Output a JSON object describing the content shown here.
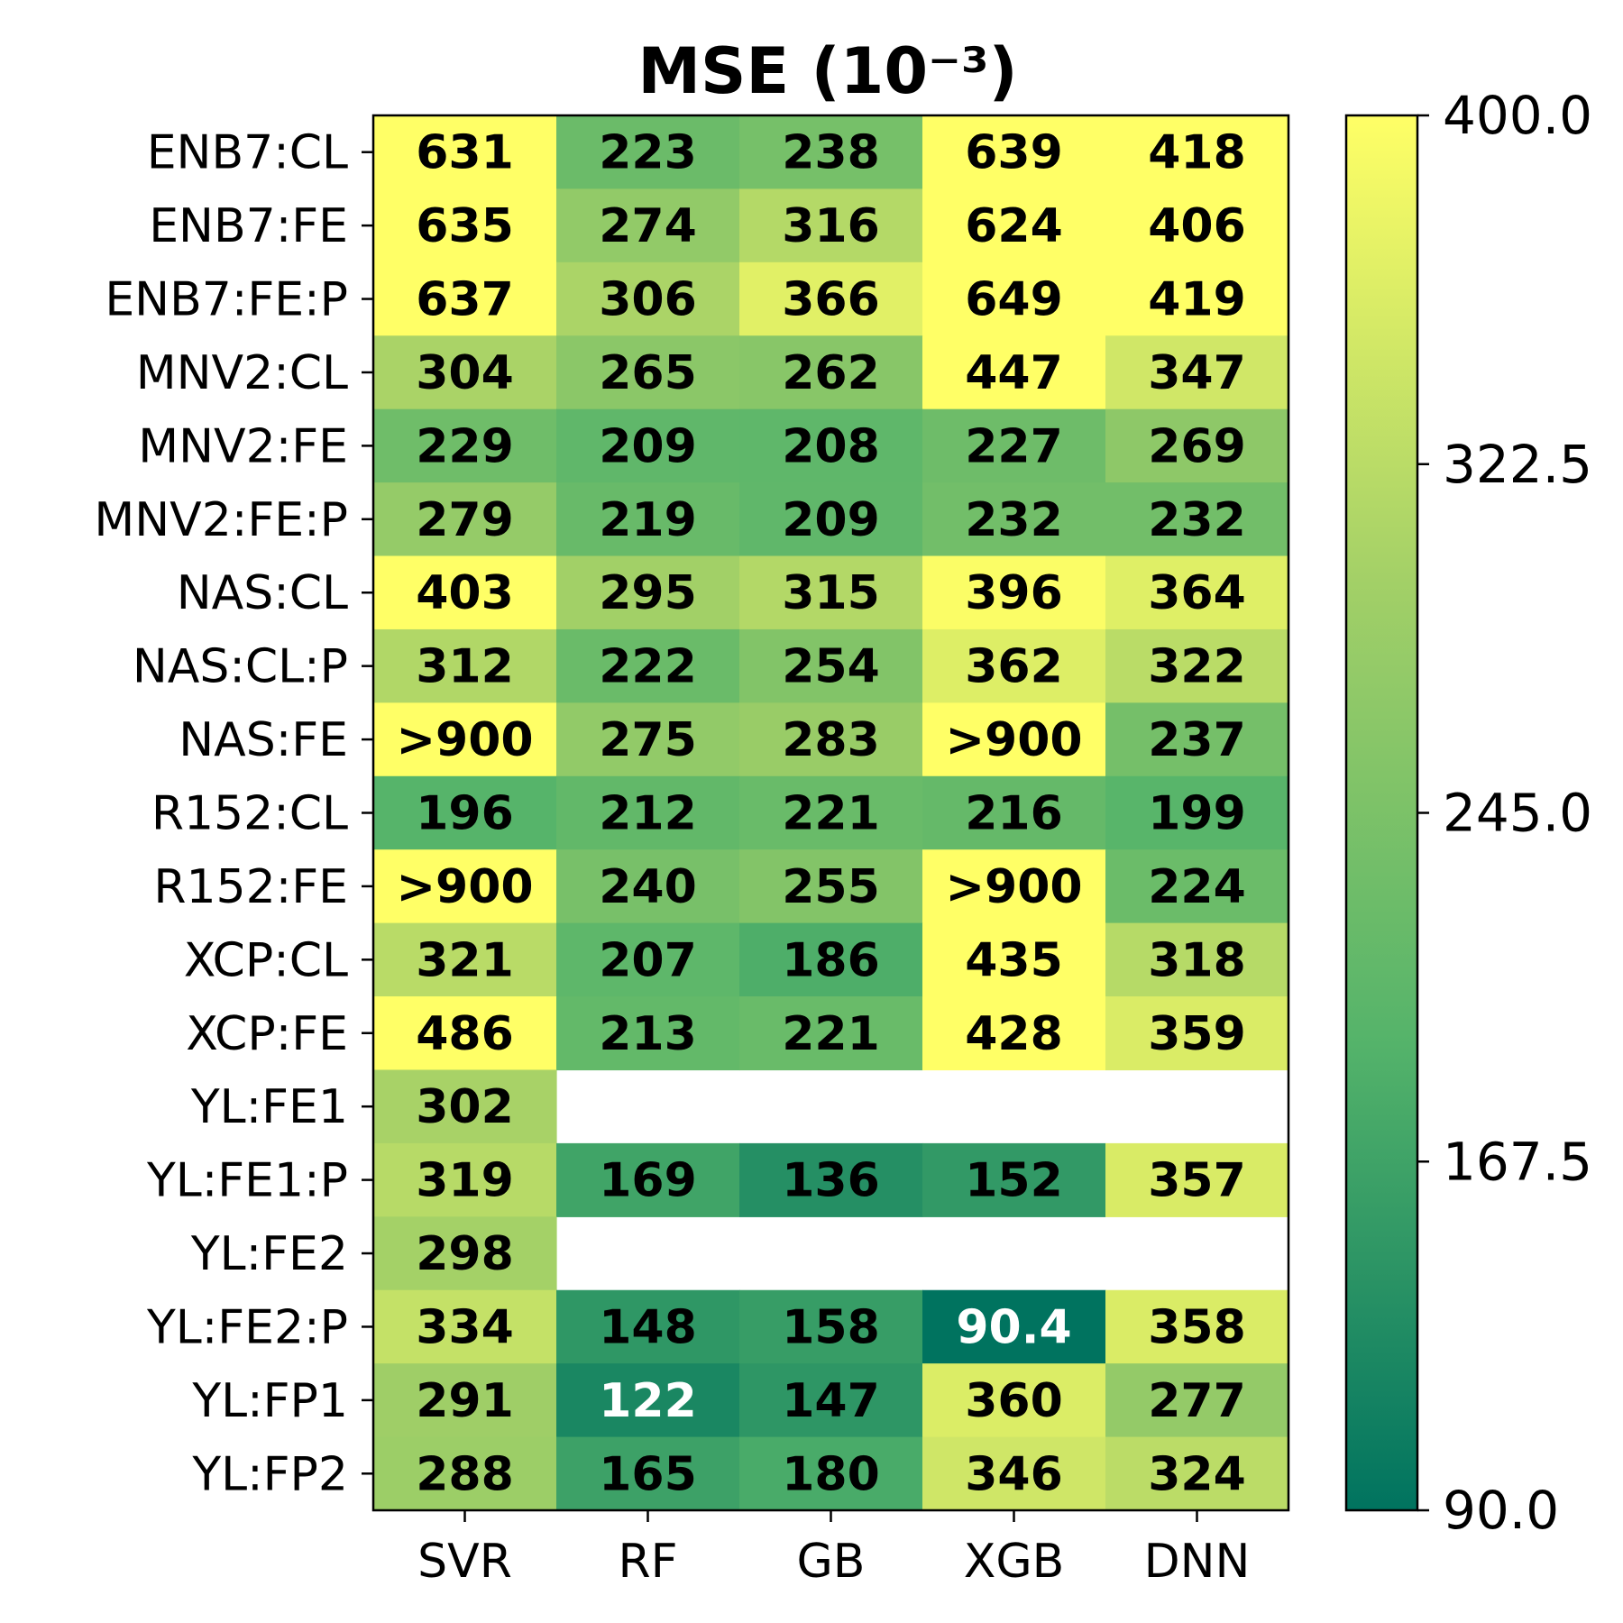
{
  "chart_data": {
    "type": "heatmap",
    "title": "MSE (10⁻³)",
    "columns": [
      "SVR",
      "RF",
      "GB",
      "XGB",
      "DNN"
    ],
    "rows": [
      "ENB7:CL",
      "ENB7:FE",
      "ENB7:FE:P",
      "MNV2:CL",
      "MNV2:FE",
      "MNV2:FE:P",
      "NAS:CL",
      "NAS:CL:P",
      "NAS:FE",
      "R152:CL",
      "R152:FE",
      "XCP:CL",
      "XCP:FE",
      "YL:FE1",
      "YL:FE1:P",
      "YL:FE2",
      "YL:FE2:P",
      "YL:FP1",
      "YL:FP2"
    ],
    "values": [
      [
        631,
        223,
        238,
        639,
        418
      ],
      [
        635,
        274,
        316,
        624,
        406
      ],
      [
        637,
        306,
        366,
        649,
        419
      ],
      [
        304,
        265,
        262,
        447,
        347
      ],
      [
        229,
        209,
        208,
        227,
        269
      ],
      [
        279,
        219,
        209,
        232,
        232
      ],
      [
        403,
        295,
        315,
        396,
        364
      ],
      [
        312,
        222,
        254,
        362,
        322
      ],
      [
        ">900",
        275,
        283,
        ">900",
        237
      ],
      [
        196,
        212,
        221,
        216,
        199
      ],
      [
        ">900",
        240,
        255,
        ">900",
        224
      ],
      [
        321,
        207,
        186,
        435,
        318
      ],
      [
        486,
        213,
        221,
        428,
        359
      ],
      [
        302,
        null,
        null,
        null,
        null
      ],
      [
        319,
        169,
        136,
        152,
        357
      ],
      [
        298,
        null,
        null,
        null,
        null
      ],
      [
        334,
        148,
        158,
        90.4,
        358
      ],
      [
        291,
        122,
        147,
        360,
        277
      ],
      [
        288,
        165,
        180,
        346,
        324
      ]
    ],
    "colorbar": {
      "min": 90.0,
      "max": 400.0,
      "ticks": [
        "90.0",
        "167.5",
        "245.0",
        "322.5",
        "400.0"
      ],
      "colormap": [
        "#00735f",
        "#54b36a",
        "#a3d067",
        "#ffff66"
      ]
    },
    "label_colors": {
      "dark_cell": "#ffffff",
      "light_cell": "#000000"
    }
  }
}
